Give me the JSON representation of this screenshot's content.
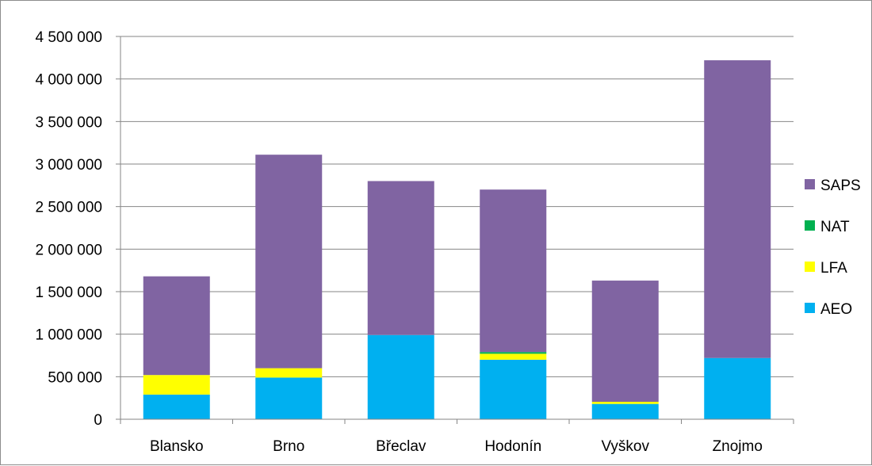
{
  "chart_data": {
    "type": "bar",
    "stacked": true,
    "categories": [
      "Blansko",
      "Brno",
      "Břeclav",
      "Hodonín",
      "Vyškov",
      "Znojmo"
    ],
    "series": [
      {
        "name": "AEO",
        "color": "#00b0f0",
        "values": [
          290000,
          490000,
          990000,
          700000,
          180000,
          720000
        ]
      },
      {
        "name": "LFA",
        "color": "#ffff00",
        "values": [
          230000,
          110000,
          0,
          70000,
          25000,
          0
        ]
      },
      {
        "name": "NAT",
        "color": "#00b050",
        "values": [
          0,
          0,
          0,
          20000,
          0,
          0
        ]
      },
      {
        "name": "SAPS",
        "color": "#8064a2",
        "values": [
          1160000,
          2510000,
          1810000,
          1910000,
          1425000,
          3500000
        ]
      }
    ],
    "ylim": [
      0,
      4500000
    ],
    "yticks": [
      0,
      500000,
      1000000,
      1500000,
      2000000,
      2500000,
      3000000,
      3500000,
      4000000,
      4500000
    ],
    "ytick_labels": [
      "0",
      "500 000",
      "1 000 000",
      "1 500 000",
      "2 000 000",
      "2 500 000",
      "3 000 000",
      "3 500 000",
      "4 000 000",
      "4 500 000"
    ],
    "grid": true,
    "legend_position": "right",
    "legend_order": [
      "SAPS",
      "NAT",
      "LFA",
      "AEO"
    ]
  }
}
